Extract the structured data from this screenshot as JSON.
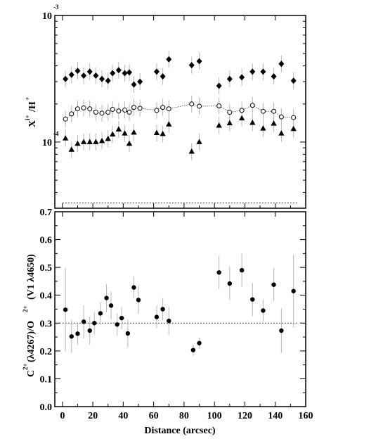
{
  "chart_data": [
    {
      "type": "scatter",
      "ylabel": "X^i+ / H^+",
      "yscale": "log",
      "xlim": [
        -5,
        160
      ],
      "ylim": [
        3e-05,
        0.001
      ],
      "y_ticks": [
        {
          "value": 0.001,
          "base": "10",
          "exp": "-3"
        },
        {
          "value": 0.0001,
          "base": "10",
          "exp": "-4"
        }
      ],
      "reference_line": {
        "y": 3.3e-05,
        "style": "dotted"
      },
      "series": [
        {
          "marker": "filled-diamond",
          "x": [
            2,
            6,
            10,
            14,
            18,
            22,
            26,
            30,
            33,
            37,
            41,
            44,
            47,
            51,
            62,
            66,
            70,
            85,
            90,
            103,
            110,
            118,
            125,
            132,
            139,
            144,
            152
          ],
          "y": [
            0.000315,
            0.00034,
            0.000365,
            0.000335,
            0.00036,
            0.000335,
            0.000315,
            0.000305,
            0.00035,
            0.00037,
            0.00035,
            0.000355,
            0.000285,
            0.0003,
            0.00036,
            0.00033,
            0.00045,
            0.000405,
            0.000435,
            0.000278,
            0.000315,
            0.000325,
            0.00036,
            0.00036,
            0.00033,
            0.000415,
            0.000305
          ]
        },
        {
          "marker": "open-circle",
          "connected": true,
          "x": [
            2,
            6,
            10,
            14,
            18,
            22,
            26,
            30,
            33,
            37,
            41,
            44,
            47,
            51,
            62,
            66,
            70,
            85,
            90,
            103,
            110,
            118,
            125,
            132,
            139,
            144,
            152
          ],
          "y": [
            0.000152,
            0.000167,
            0.000183,
            0.000186,
            0.000183,
            0.000172,
            0.000169,
            0.000172,
            0.000181,
            0.000176,
            0.000179,
            0.000172,
            0.000188,
            0.000185,
            0.000178,
            0.000188,
            0.000183,
            0.0002,
            0.000192,
            0.000193,
            0.000172,
            0.000178,
            0.000195,
            0.000175,
            0.000175,
            0.000158,
            0.000156
          ]
        },
        {
          "marker": "filled-triangle",
          "x": [
            2,
            6,
            10,
            14,
            18,
            22,
            26,
            30,
            33,
            37,
            41,
            44,
            47,
            62,
            66,
            70,
            85,
            90,
            103,
            110,
            118,
            125,
            132,
            139,
            144,
            152
          ],
          "y": [
            0.000107,
            8.7e-05,
            9.7e-05,
            0.0001,
            0.0001,
            0.0001,
            0.000102,
            0.000106,
            0.000115,
            0.000126,
            0.000117,
            9.7e-05,
            0.000119,
            0.000118,
            0.000116,
            0.000138,
            8.4e-05,
            0.0001,
            0.000135,
            0.000141,
            0.000154,
            0.000142,
            0.000128,
            0.00014,
            0.000117,
            0.000127
          ]
        }
      ]
    },
    {
      "type": "scatter",
      "xlabel": "Distance (arcsec)",
      "ylabel": "C^2+ (λ4267)/O^2+ (V1 λ4650)",
      "xlim": [
        -5,
        160
      ],
      "ylim": [
        0.0,
        0.7
      ],
      "x_ticks": [
        0,
        20,
        40,
        60,
        80,
        100,
        120,
        140,
        160
      ],
      "y_ticks": [
        0.0,
        0.1,
        0.2,
        0.3,
        0.4,
        0.5,
        0.6,
        0.7
      ],
      "reference_line": {
        "y": 0.3,
        "style": "dotted"
      },
      "series": [
        {
          "marker": "filled-circle",
          "x": [
            2,
            6,
            10,
            14,
            18,
            21,
            25,
            29,
            32,
            36,
            39,
            43,
            47,
            50,
            62,
            66,
            70,
            86,
            90,
            103,
            110,
            118,
            125,
            132,
            139,
            144,
            152
          ],
          "y": [
            0.348,
            0.252,
            0.262,
            0.305,
            0.273,
            0.3,
            0.335,
            0.39,
            0.363,
            0.295,
            0.318,
            0.263,
            0.428,
            0.383,
            0.322,
            0.35,
            0.308,
            0.203,
            0.228,
            0.482,
            0.442,
            0.49,
            0.385,
            0.345,
            0.438,
            0.273,
            0.415
          ],
          "yerr": [
            0.15,
            0.06,
            0.04,
            0.06,
            0.05,
            0.04,
            0.04,
            0.05,
            0.05,
            0.04,
            0.04,
            0.05,
            0.04,
            0.05,
            0.04,
            0.04,
            0.05,
            0.02,
            0.02,
            0.06,
            0.06,
            0.06,
            0.06,
            0.04,
            0.06,
            0.08,
            0.13
          ]
        }
      ]
    }
  ]
}
